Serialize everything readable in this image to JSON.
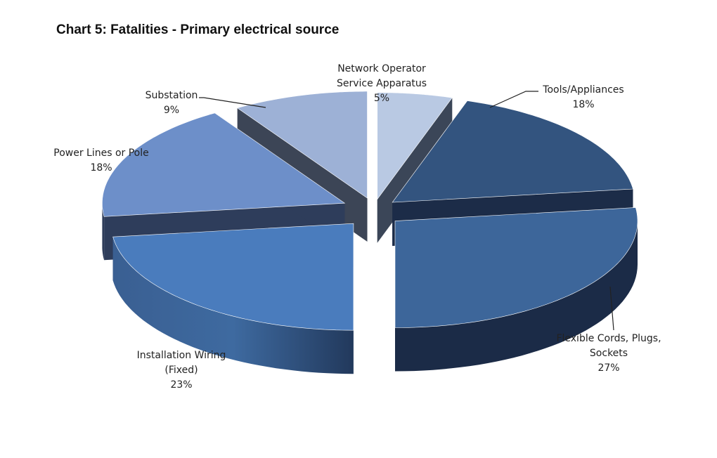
{
  "chart_data": {
    "type": "pie",
    "title": "Chart 5: Fatalities - Primary electrical source",
    "style": "3d-exploded",
    "slices": [
      {
        "label": [
          "Network Operator",
          "Service Apparatus"
        ],
        "value": 5,
        "value_label": "5%",
        "color": "#b9c9e3"
      },
      {
        "label": [
          "Tools/Appliances"
        ],
        "value": 18,
        "value_label": "18%",
        "color": "#33547f"
      },
      {
        "label": [
          "Flexible Cords, Plugs,",
          "Sockets"
        ],
        "value": 27,
        "value_label": "27%",
        "color": "#3d669a"
      },
      {
        "label": [
          "Installation Wiring",
          "(Fixed)"
        ],
        "value": 23,
        "value_label": "23%",
        "color": "#4a7cbd"
      },
      {
        "label": [
          "Power Lines or Pole"
        ],
        "value": 18,
        "value_label": "18%",
        "color": "#6d8fc9"
      },
      {
        "label": [
          "Substation"
        ],
        "value": 9,
        "value_label": "9%",
        "color": "#9db1d6"
      }
    ]
  }
}
